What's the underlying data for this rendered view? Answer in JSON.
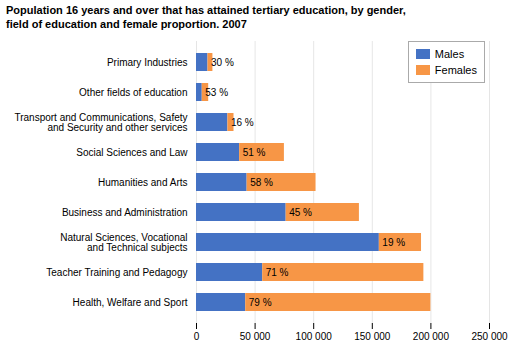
{
  "chart_data": {
    "type": "bar",
    "orientation": "horizontal",
    "stacked": true,
    "title": "Population 16 years and over that has attained tertiary education, by gender,\nfield of education and female proportion. 2007",
    "categories": [
      "Primary Industries",
      "Other fields of education",
      "Transport and Communications, Safety\nand Security and other services",
      "Social Sciences and Law",
      "Humanities and Arts",
      "Business and Administration",
      "Natural Sciences, Vocational\nand Technical subjects",
      "Teacher Training and Pedagogy",
      "Health, Welfare and Sport"
    ],
    "series": [
      {
        "name": "Males",
        "color": "#4472c4",
        "values": [
          9800,
          4900,
          26800,
          36800,
          43200,
          76500,
          156000,
          56500,
          42000
        ]
      },
      {
        "name": "Females",
        "color": "#f79646",
        "values": [
          4200,
          5500,
          5200,
          38200,
          58800,
          62500,
          36000,
          137500,
          158000
        ]
      }
    ],
    "female_share": [
      {
        "value": 30,
        "label": "30 %"
      },
      {
        "value": 53,
        "label": "53 %"
      },
      {
        "value": 16,
        "label": "16 %"
      },
      {
        "value": 51,
        "label": "51 %"
      },
      {
        "value": 58,
        "label": "58 %"
      },
      {
        "value": 45,
        "label": "45 %"
      },
      {
        "value": 19,
        "label": "19 %"
      },
      {
        "value": 71,
        "label": "71 %"
      },
      {
        "value": 79,
        "label": "79 %"
      }
    ],
    "xlim": [
      0,
      250000
    ],
    "xticks": [
      0,
      {
        "value": 50000,
        "label": "50 000"
      },
      {
        "value": 100000,
        "label": "100 000"
      },
      {
        "value": 150000,
        "label": "150 000"
      },
      {
        "value": 200000,
        "label": "200 000"
      },
      {
        "value": 250000,
        "label": "250 000"
      }
    ],
    "grid": true,
    "legend": "upper right"
  }
}
